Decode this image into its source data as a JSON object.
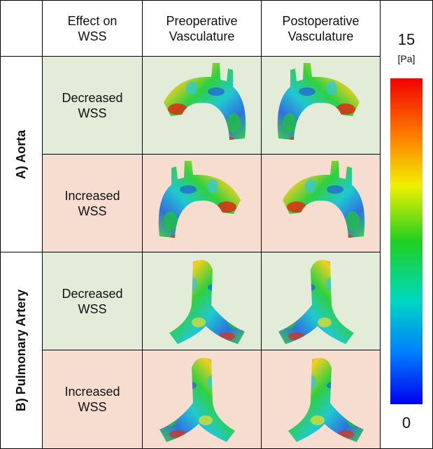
{
  "table": {
    "header": [
      [
        "Effect on",
        "WSS"
      ],
      [
        "Preoperative",
        "Vasculature"
      ],
      [
        "Postoperative",
        "Vasculature"
      ]
    ],
    "groups": [
      {
        "label": "A) Aorta",
        "rows": [
          [
            "Decreased",
            "WSS"
          ],
          [
            "Increased",
            "WSS"
          ]
        ]
      },
      {
        "label": "B) Pulmonary Artery",
        "rows": [
          [
            "Decreased",
            "WSS"
          ],
          [
            "Increased",
            "WSS"
          ]
        ]
      }
    ]
  },
  "colorbar": {
    "max": 15,
    "unit": "[Pa]",
    "min": 0
  }
}
